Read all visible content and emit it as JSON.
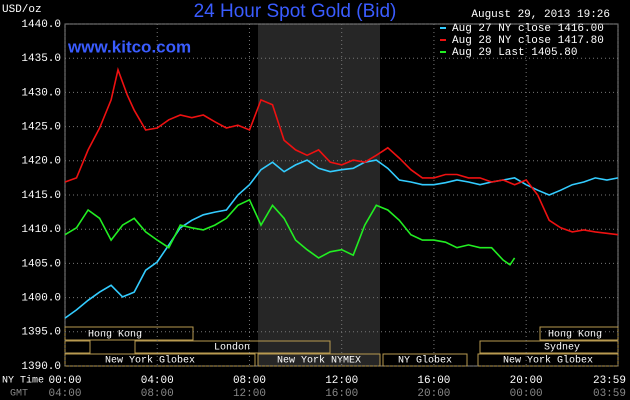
{
  "chart_data": {
    "type": "line",
    "title": "24 Hour Spot Gold (Bid)",
    "subtitle": "August 29, 2013 19:26",
    "y_label": "USD/oz",
    "site": "www.kitco.com",
    "x_label": "NY Time",
    "x2_label": "GMT",
    "xlim": [
      0,
      23.983
    ],
    "ylim": [
      1390,
      1440
    ],
    "grid": true,
    "xticks": [
      {
        "value": 0,
        "label": "00:00"
      },
      {
        "value": 4,
        "label": "04:00"
      },
      {
        "value": 8,
        "label": "08:00"
      },
      {
        "value": 12,
        "label": "12:00"
      },
      {
        "value": 16,
        "label": "16:00"
      },
      {
        "value": 20,
        "label": "20:00"
      },
      {
        "value": 23.983,
        "label": "23:59"
      }
    ],
    "x2ticks": [
      "04:00",
      "08:00",
      "12:00",
      "16:00",
      "20:00",
      "00:00",
      "03:59"
    ],
    "yticks": [
      {
        "value": 1390,
        "label": "1390.0"
      },
      {
        "value": 1395,
        "label": "1395.0"
      },
      {
        "value": 1400,
        "label": "1400.0"
      },
      {
        "value": 1405,
        "label": "1405.0"
      },
      {
        "value": 1410,
        "label": "1410.0"
      },
      {
        "value": 1415,
        "label": "1415.0"
      },
      {
        "value": 1420,
        "label": "1420.0"
      },
      {
        "value": 1425,
        "label": "1425.0"
      },
      {
        "value": 1430,
        "label": "1430.0"
      },
      {
        "value": 1435,
        "label": "1435.0"
      },
      {
        "value": 1440,
        "label": "1440.0"
      }
    ],
    "sessions": [
      "Hong Kong",
      "London",
      "New York Globex",
      "New York NYMEX",
      "NY Globex",
      "Sydney",
      "Hong Kong",
      "New York Globex"
    ],
    "series": [
      {
        "name": "Aug 27 NY close 1416.00",
        "color": "#33ccff",
        "x": [
          0,
          0.5,
          1,
          1.5,
          2,
          2.5,
          3,
          3.5,
          4,
          4.5,
          5,
          5.5,
          6,
          6.5,
          7,
          7.5,
          8,
          8.5,
          9,
          9.5,
          10,
          10.5,
          11,
          11.5,
          12,
          12.5,
          13,
          13.5,
          14,
          14.5,
          15,
          15.5,
          16,
          16.5,
          17,
          17.5,
          18,
          18.5,
          19,
          19.5,
          20,
          20.5,
          21,
          21.5,
          22,
          22.5,
          23,
          23.5,
          23.983
        ],
        "values": [
          1397.0,
          1398.2,
          1399.6,
          1400.8,
          1401.8,
          1400.1,
          1400.8,
          1404.0,
          1405.2,
          1407.7,
          1410.2,
          1411.3,
          1412.1,
          1412.5,
          1412.8,
          1415.0,
          1416.5,
          1418.7,
          1419.8,
          1418.4,
          1419.4,
          1420.1,
          1418.9,
          1418.4,
          1418.7,
          1418.9,
          1419.8,
          1420.1,
          1418.9,
          1417.2,
          1416.9,
          1416.5,
          1416.5,
          1416.8,
          1417.2,
          1416.9,
          1416.5,
          1416.9,
          1417.2,
          1417.5,
          1416.5,
          1415.7,
          1415.0,
          1415.7,
          1416.5,
          1416.9,
          1417.5,
          1417.2,
          1417.5
        ]
      },
      {
        "name": "Aug 28 NY close 1417.80",
        "color": "#ee1111",
        "x": [
          0,
          0.5,
          1,
          1.5,
          2,
          2.3,
          2.7,
          3,
          3.5,
          4,
          4.5,
          5,
          5.5,
          6,
          6.5,
          7,
          7.5,
          8,
          8.5,
          9,
          9.5,
          10,
          10.5,
          11,
          11.5,
          12,
          12.5,
          13,
          13.5,
          14,
          14.5,
          15,
          15.5,
          16,
          16.5,
          17,
          17.5,
          18,
          18.5,
          19,
          19.5,
          20,
          20.5,
          21,
          21.5,
          22,
          22.5,
          23,
          23.5,
          23.983
        ],
        "values": [
          1416.9,
          1417.5,
          1421.6,
          1424.8,
          1428.9,
          1433.3,
          1429.6,
          1427.4,
          1424.5,
          1424.8,
          1426.0,
          1426.7,
          1426.3,
          1426.7,
          1425.7,
          1424.8,
          1425.2,
          1424.5,
          1428.9,
          1428.2,
          1423.0,
          1421.6,
          1420.8,
          1421.6,
          1419.8,
          1419.4,
          1420.1,
          1419.8,
          1420.8,
          1421.9,
          1420.4,
          1418.7,
          1417.5,
          1417.5,
          1418.0,
          1418.0,
          1417.5,
          1417.5,
          1416.9,
          1417.2,
          1416.5,
          1417.2,
          1415.0,
          1411.3,
          1410.2,
          1409.6,
          1409.9,
          1409.6,
          1409.4,
          1409.2
        ]
      },
      {
        "name": "Aug 29 Last 1405.80",
        "color": "#22ee22",
        "x": [
          0,
          0.5,
          1,
          1.5,
          2,
          2.5,
          3,
          3.5,
          4,
          4.5,
          5,
          5.5,
          6,
          6.5,
          7,
          7.5,
          8,
          8.5,
          9,
          9.5,
          10,
          10.5,
          11,
          11.5,
          12,
          12.5,
          13,
          13.5,
          14,
          14.5,
          15,
          15.5,
          16,
          16.5,
          17,
          17.5,
          18,
          18.5,
          19,
          19.3,
          19.5
        ],
        "values": [
          1409.2,
          1410.2,
          1412.8,
          1411.6,
          1408.4,
          1410.6,
          1411.6,
          1409.6,
          1408.4,
          1407.3,
          1410.6,
          1410.2,
          1409.9,
          1410.6,
          1411.6,
          1413.5,
          1414.3,
          1410.6,
          1413.5,
          1411.6,
          1408.4,
          1407.0,
          1405.8,
          1406.7,
          1407.0,
          1406.2,
          1410.6,
          1413.5,
          1412.8,
          1411.3,
          1409.2,
          1408.4,
          1408.4,
          1408.1,
          1407.3,
          1407.7,
          1407.3,
          1407.3,
          1405.5,
          1404.8,
          1405.8
        ]
      }
    ]
  }
}
